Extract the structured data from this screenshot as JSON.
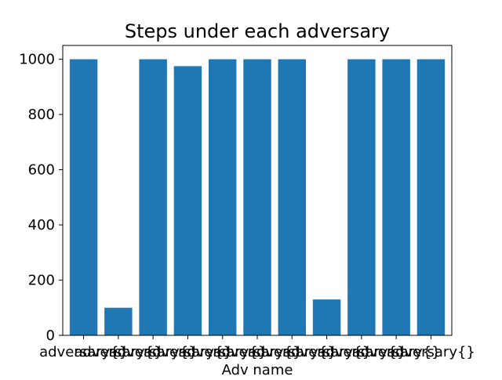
{
  "chart_data": {
    "type": "bar",
    "title": "Steps under each adversary",
    "xlabel": "Adv name",
    "ylabel": "",
    "categories": [
      "adversary{}",
      "adversary{}",
      "adversary{}",
      "adversary{}",
      "adversary{}",
      "adversary{}",
      "adversary{}",
      "adversary{}",
      "adversary{}",
      "adversary{}",
      "adversary{}"
    ],
    "values": [
      1000,
      100,
      1000,
      975,
      1000,
      1000,
      1000,
      130,
      1000,
      1000,
      1000
    ],
    "ylim": [
      0,
      1050
    ],
    "yticks": [
      0,
      200,
      400,
      600,
      800,
      1000
    ],
    "grid": false,
    "bar_color": "#1f77b4"
  }
}
